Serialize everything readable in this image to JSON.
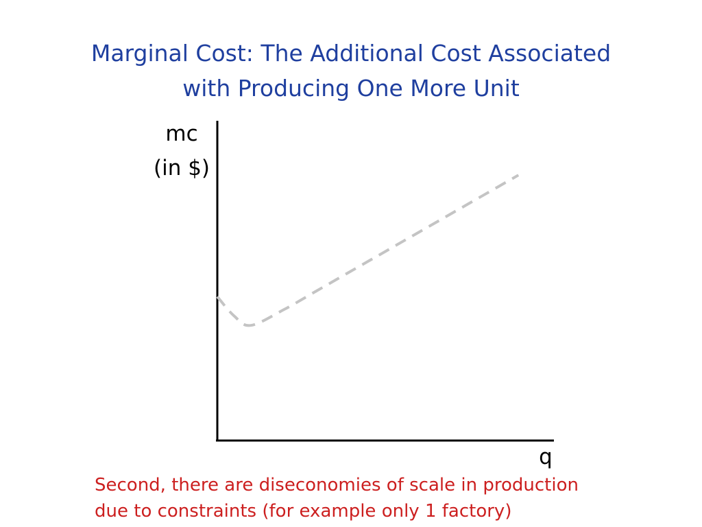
{
  "slide": {
    "title_lines": [
      "Marginal Cost: The Additional Cost Associated",
      "with Producing One More Unit"
    ],
    "caption_lines": [
      "Second, there are diseconomies of scale in production",
      "due to constraints (for example only 1 factory)"
    ]
  },
  "chart_data": {
    "type": "line",
    "ylabel_lines": [
      "mc",
      "(in $)"
    ],
    "xlabel": "q",
    "series": [
      {
        "x": [
          0,
          0.5,
          1,
          2,
          3,
          4,
          5,
          6,
          7,
          8,
          9
        ],
        "y": [
          4.5,
          3.9,
          3.6,
          4.1,
          4.7,
          5.3,
          5.9,
          6.5,
          7.1,
          7.7,
          8.3
        ],
        "color": "#c4c4c4",
        "style": "dashed"
      }
    ],
    "xlim": [
      0,
      10
    ],
    "ylim": [
      0,
      10
    ],
    "grid": false,
    "ticks": false
  }
}
